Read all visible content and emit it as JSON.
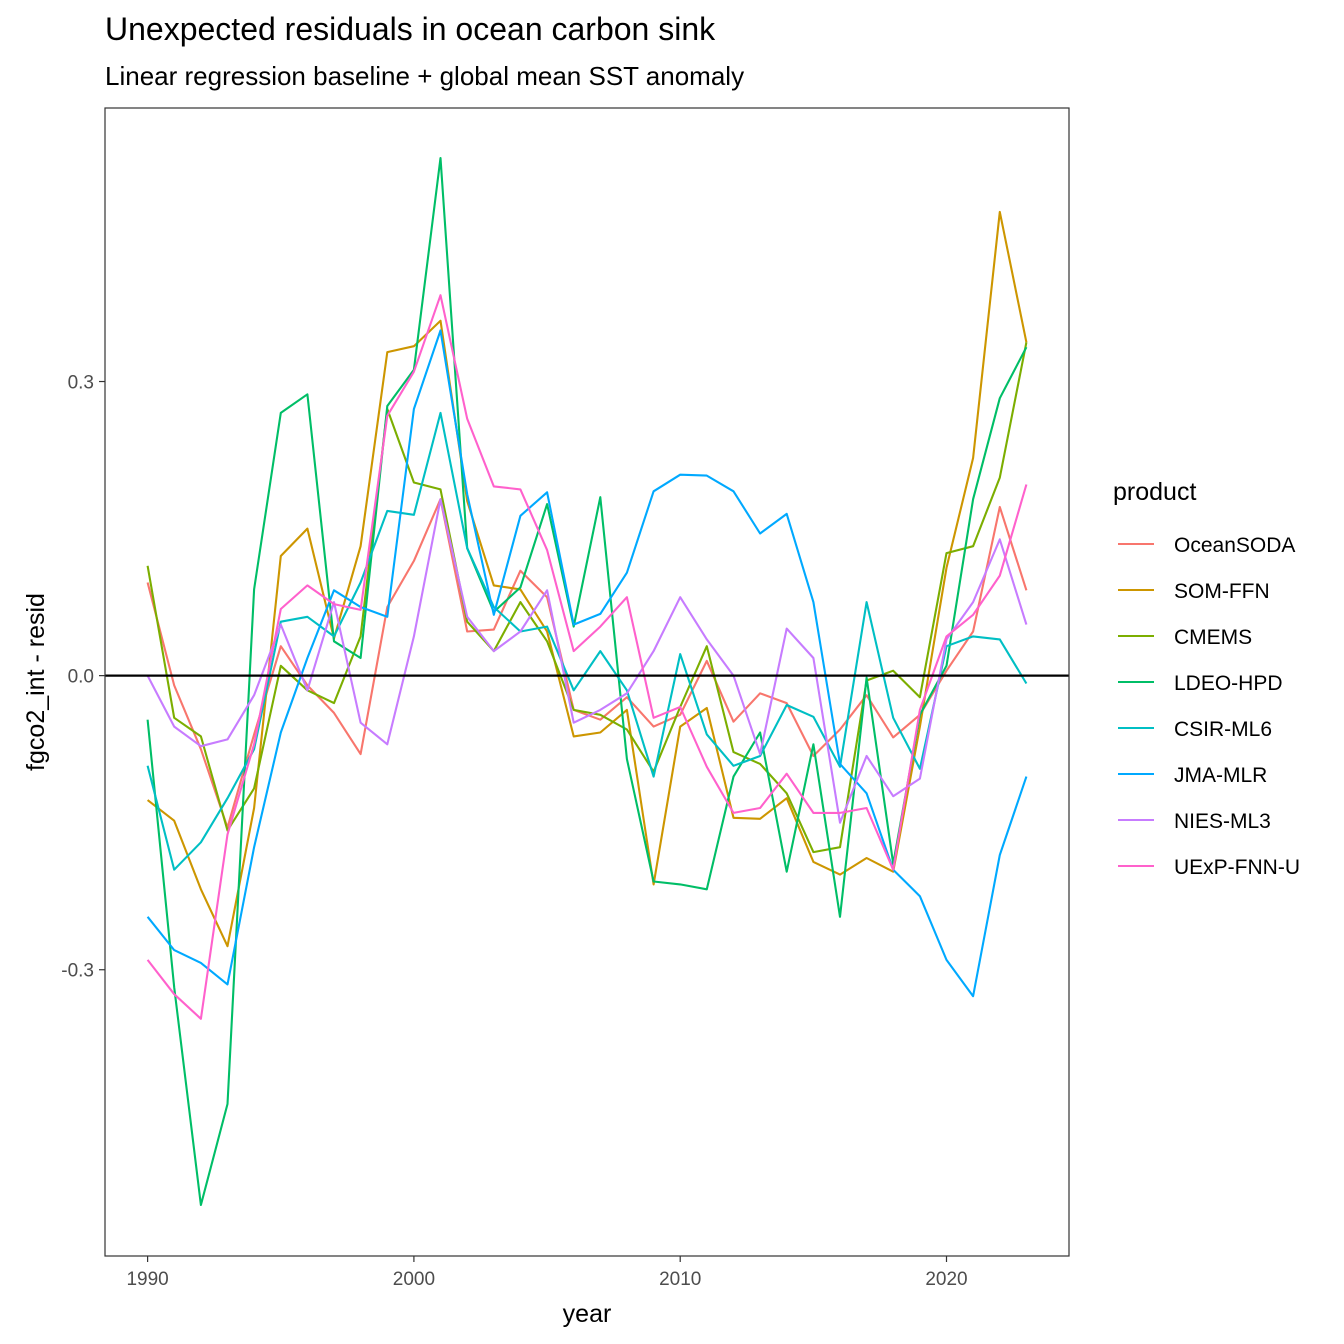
{
  "chart_data": {
    "type": "line",
    "title": "Unexpected residuals in ocean carbon sink",
    "subtitle": "Linear regression baseline + global mean SST anomaly",
    "xlabel": "year",
    "ylabel": "fgco2_int - resid",
    "xlim": [
      1988.4,
      2024.6
    ],
    "ylim": [
      -0.592,
      0.579
    ],
    "x_ticks": [
      1990,
      2000,
      2010,
      2020
    ],
    "x_tick_labels": [
      "1990",
      "2000",
      "2010",
      "2020"
    ],
    "y_ticks": [
      -0.3,
      0.0,
      0.3
    ],
    "y_tick_labels": [
      "-0.3",
      "0.0",
      "0.3"
    ],
    "reference_line": {
      "y": 0,
      "color": "#000000"
    },
    "grid": false,
    "legend": {
      "title": "product",
      "placement": "right"
    },
    "x": [
      1990,
      1991,
      1992,
      1993,
      1994,
      1995,
      1996,
      1997,
      1998,
      1999,
      2000,
      2001,
      2002,
      2003,
      2004,
      2005,
      2006,
      2007,
      2008,
      2009,
      2010,
      2011,
      2012,
      2013,
      2014,
      2015,
      2016,
      2017,
      2018,
      2019,
      2020,
      2021,
      2022,
      2023
    ],
    "series": [
      {
        "name": "OceanSODA",
        "color": "#F8766D",
        "values": [
          0.095,
          -0.01,
          -0.075,
          -0.155,
          -0.06,
          0.03,
          -0.01,
          -0.038,
          -0.08,
          0.07,
          0.117,
          0.18,
          0.045,
          0.047,
          0.107,
          0.08,
          -0.035,
          -0.045,
          -0.022,
          -0.052,
          -0.04,
          0.015,
          -0.047,
          -0.018,
          -0.028,
          -0.082,
          -0.055,
          -0.02,
          -0.063,
          -0.04,
          0.005,
          0.045,
          0.172,
          0.087
        ]
      },
      {
        "name": "SOM-FFN",
        "color": "#CD9600",
        "values": [
          -0.127,
          -0.148,
          -0.218,
          -0.276,
          -0.135,
          0.122,
          0.15,
          0.038,
          0.132,
          0.33,
          0.336,
          0.362,
          0.178,
          0.092,
          0.088,
          0.045,
          -0.062,
          -0.058,
          -0.035,
          -0.213,
          -0.052,
          -0.033,
          -0.145,
          -0.146,
          -0.125,
          -0.19,
          -0.203,
          -0.186,
          -0.2,
          -0.052,
          0.11,
          0.222,
          0.473,
          0.34
        ]
      },
      {
        "name": "CMEMS",
        "color": "#7CAE00",
        "values": [
          0.112,
          -0.043,
          -0.062,
          -0.158,
          -0.115,
          0.01,
          -0.015,
          -0.028,
          0.04,
          0.272,
          0.197,
          0.19,
          0.055,
          0.025,
          0.075,
          0.035,
          -0.035,
          -0.04,
          -0.055,
          -0.098,
          -0.032,
          0.03,
          -0.078,
          -0.09,
          -0.12,
          -0.18,
          -0.175,
          -0.005,
          0.005,
          -0.022,
          0.125,
          0.132,
          0.202,
          0.34
        ]
      },
      {
        "name": "LDEO-HPD",
        "color": "#00BE67",
        "values": [
          -0.045,
          -0.318,
          -0.54,
          -0.437,
          0.088,
          0.268,
          0.287,
          0.035,
          0.018,
          0.275,
          0.312,
          0.528,
          0.13,
          0.065,
          0.09,
          0.175,
          0.05,
          0.182,
          -0.085,
          -0.21,
          -0.213,
          -0.218,
          -0.103,
          -0.058,
          -0.2,
          -0.07,
          -0.246,
          -0.002,
          -0.192,
          -0.04,
          0.01,
          0.18,
          0.283,
          0.335
        ]
      },
      {
        "name": "CSIR-ML6",
        "color": "#00BFC4",
        "values": [
          -0.092,
          -0.198,
          -0.17,
          -0.125,
          -0.075,
          0.055,
          0.06,
          0.04,
          0.095,
          0.168,
          0.164,
          0.268,
          0.13,
          0.07,
          0.045,
          0.05,
          -0.015,
          0.025,
          -0.015,
          -0.103,
          0.022,
          -0.06,
          -0.092,
          -0.082,
          -0.03,
          -0.042,
          -0.093,
          0.075,
          -0.043,
          -0.095,
          0.03,
          0.04,
          0.037,
          -0.008
        ]
      },
      {
        "name": "JMA-MLR",
        "color": "#00A9FF",
        "values": [
          -0.246,
          -0.28,
          -0.293,
          -0.315,
          -0.175,
          -0.058,
          0.018,
          0.087,
          0.07,
          0.06,
          0.272,
          0.352,
          0.185,
          0.062,
          0.163,
          0.187,
          0.052,
          0.063,
          0.105,
          0.188,
          0.205,
          0.204,
          0.188,
          0.145,
          0.165,
          0.075,
          -0.09,
          -0.12,
          -0.198,
          -0.225,
          -0.29,
          -0.327,
          -0.183,
          -0.103
        ]
      },
      {
        "name": "NIES-ML3",
        "color": "#C77CFF",
        "values": [
          0.0,
          -0.052,
          -0.072,
          -0.065,
          -0.02,
          0.052,
          -0.015,
          0.075,
          -0.048,
          -0.07,
          0.04,
          0.18,
          0.06,
          0.025,
          0.045,
          0.087,
          -0.048,
          -0.035,
          -0.018,
          0.025,
          0.08,
          0.037,
          0.0,
          -0.08,
          0.048,
          0.018,
          -0.15,
          -0.082,
          -0.123,
          -0.105,
          0.037,
          0.075,
          0.139,
          0.052
        ]
      },
      {
        "name": "UExP-FNN-U",
        "color": "#FF61CC",
        "values": [
          -0.29,
          -0.325,
          -0.35,
          -0.162,
          -0.07,
          0.068,
          0.092,
          0.073,
          0.067,
          0.265,
          0.31,
          0.388,
          0.262,
          0.193,
          0.19,
          0.128,
          0.025,
          0.05,
          0.08,
          -0.043,
          -0.032,
          -0.093,
          -0.14,
          -0.135,
          -0.1,
          -0.14,
          -0.14,
          -0.135,
          -0.198,
          -0.035,
          0.04,
          0.062,
          0.102,
          0.195
        ]
      }
    ]
  }
}
